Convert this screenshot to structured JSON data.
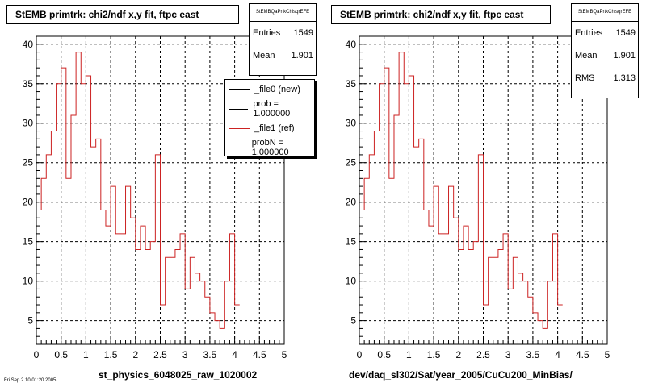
{
  "colors": {
    "frame": "#000000",
    "new": "#000000",
    "ref": "#cc2222",
    "grid": "#000000"
  },
  "panels": [
    {
      "title": "StEMB primtrk: chi2/ndf x,y fit, ftpc east",
      "stats_name": "StEMBQaPrtkChisqrEFE",
      "stats": [
        {
          "label": "Entries",
          "value": "1549"
        },
        {
          "label": "Mean",
          "value": "1.901"
        }
      ],
      "legend": [
        {
          "label": "_file0 (new)",
          "color": "#000000"
        },
        {
          "label": "prob = 1.000000",
          "color": "#000000"
        },
        {
          "label": "_file1 (ref)",
          "color": "#cc2222"
        },
        {
          "label": "probN = 1.000000",
          "color": "#cc2222"
        }
      ],
      "xlabel": "st_physics_6048025_raw_1020002"
    },
    {
      "title": "StEMB primtrk: chi2/ndf x,y fit, ftpc east",
      "stats_name": "StEMBQaPrtkChisqrEFE",
      "stats": [
        {
          "label": "Entries",
          "value": "1549"
        },
        {
          "label": "Mean",
          "value": "1.901"
        },
        {
          "label": "RMS",
          "value": "1.313"
        }
      ],
      "legend": [],
      "xlabel": "dev/daq_sl302/Sat/year_2005/CuCu200_MinBias/"
    }
  ],
  "footer": "Fri Sep 2 10:01:20 2005",
  "chart_data": [
    {
      "type": "histogram",
      "title": "StEMB primtrk: chi2/ndf x,y fit, ftpc east",
      "xlabel": "st_physics_6048025_raw_1020002",
      "ylabel": "",
      "xlim": [
        0,
        5
      ],
      "ylim": [
        2,
        41
      ],
      "xticks": [
        0,
        0.5,
        1,
        1.5,
        2,
        2.5,
        3,
        3.5,
        4,
        4.5,
        5
      ],
      "xtick_labels": [
        "0",
        "0.5",
        "1",
        "1.5",
        "2",
        "2.5",
        "3",
        "3.5",
        "4",
        "4.5",
        "5"
      ],
      "yticks": [
        5,
        10,
        15,
        20,
        25,
        30,
        35,
        40
      ],
      "ytick_labels": [
        "5",
        "10",
        "15",
        "20",
        "25",
        "30",
        "35",
        "40"
      ],
      "grid": true,
      "bin_width": 0.1,
      "series": [
        {
          "name": "_file1 (ref)",
          "values": [
            19,
            23,
            26,
            29,
            35,
            37,
            23,
            31,
            39,
            35,
            36,
            27,
            28,
            19,
            17,
            22,
            16,
            16,
            22,
            18,
            14,
            17,
            14,
            15,
            26,
            7,
            13,
            13,
            14,
            16,
            9,
            13,
            11,
            10,
            8,
            6,
            5,
            4,
            10,
            16,
            7
          ]
        }
      ]
    },
    {
      "type": "histogram",
      "title": "StEMB primtrk: chi2/ndf x,y fit, ftpc east",
      "xlabel": "dev/daq_sl302/Sat/year_2005/CuCu200_MinBias/",
      "ylabel": "",
      "xlim": [
        0,
        5
      ],
      "ylim": [
        2,
        41
      ],
      "xticks": [
        0,
        0.5,
        1,
        1.5,
        2,
        2.5,
        3,
        3.5,
        4,
        4.5,
        5
      ],
      "xtick_labels": [
        "0",
        "0.5",
        "1",
        "1.5",
        "2",
        "2.5",
        "3",
        "3.5",
        "4",
        "4.5",
        "5"
      ],
      "yticks": [
        5,
        10,
        15,
        20,
        25,
        30,
        35,
        40
      ],
      "ytick_labels": [
        "5",
        "10",
        "15",
        "20",
        "25",
        "30",
        "35",
        "40"
      ],
      "grid": true,
      "bin_width": 0.1,
      "series": [
        {
          "name": "_file1 (ref)",
          "values": [
            19,
            23,
            26,
            29,
            35,
            37,
            23,
            31,
            39,
            35,
            36,
            27,
            28,
            19,
            17,
            22,
            16,
            16,
            22,
            18,
            14,
            17,
            14,
            15,
            26,
            7,
            13,
            13,
            14,
            16,
            9,
            13,
            11,
            10,
            8,
            6,
            5,
            4,
            10,
            16,
            7
          ]
        }
      ]
    }
  ]
}
